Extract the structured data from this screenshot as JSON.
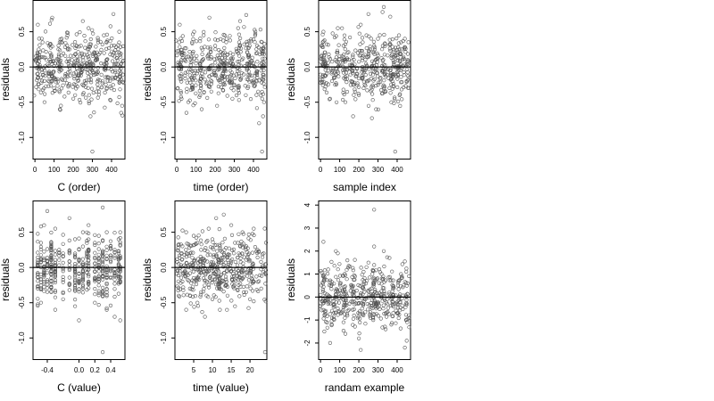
{
  "chart_data": [
    {
      "type": "scatter",
      "xlabel": "C (order)",
      "ylabel": "residuals",
      "xlim": [
        -10,
        470
      ],
      "ylim": [
        -1.3,
        0.95
      ],
      "xticks": [
        0,
        100,
        200,
        300,
        400
      ],
      "yticks": [
        -1.0,
        -0.5,
        0.0,
        0.5
      ],
      "ytick_labels": [
        "-1.0",
        "-0.5",
        "0.0",
        "0.5"
      ],
      "hline": 0,
      "n_points": 480,
      "series": [
        {
          "x": [
            5,
            20,
            40,
            60,
            80,
            100,
            120,
            140,
            160,
            180,
            200,
            220,
            240,
            260,
            280,
            300,
            320,
            340,
            360,
            380,
            400,
            420,
            440,
            455,
            15,
            50,
            90,
            130,
            170,
            210,
            250,
            290,
            330,
            370,
            410,
            450,
            25,
            75,
            125,
            175,
            225,
            275,
            325,
            375,
            425,
            300
          ],
          "y": [
            0.1,
            -0.25,
            0.35,
            0.1,
            0.2,
            -0.3,
            0.05,
            0.4,
            -0.1,
            0.25,
            -0.45,
            0.15,
            0.3,
            -0.2,
            0.55,
            0.05,
            -0.35,
            0.2,
            0.45,
            -0.15,
            0.3,
            -0.05,
            0.5,
            -0.55,
            0.6,
            -0.5,
            0.7,
            -0.6,
            0.45,
            -0.4,
            0.65,
            -0.7,
            0.35,
            -0.25,
            0.75,
            -0.65,
            0.0,
            -0.1,
            0.15,
            0.05,
            -0.2,
            0.25,
            0.1,
            -0.3,
            0.2,
            -1.2
          ]
        }
      ]
    },
    {
      "type": "scatter",
      "xlabel": "time (order)",
      "ylabel": "residuals",
      "xlim": [
        -10,
        470
      ],
      "ylim": [
        -1.3,
        0.95
      ],
      "xticks": [
        0,
        100,
        200,
        300,
        400
      ],
      "yticks": [
        -1.0,
        -0.5,
        0.0,
        0.5
      ],
      "ytick_labels": [
        "-1.0",
        "-0.5",
        "0.0",
        "0.5"
      ],
      "hline": 0,
      "n_points": 480,
      "series": [
        {
          "x": [
            5,
            20,
            40,
            60,
            80,
            100,
            120,
            140,
            160,
            180,
            200,
            220,
            240,
            260,
            280,
            300,
            320,
            340,
            360,
            380,
            400,
            420,
            440,
            455,
            15,
            50,
            90,
            130,
            170,
            210,
            250,
            290,
            330,
            370,
            410,
            450,
            25,
            75,
            125,
            175,
            225,
            275,
            325,
            375,
            425,
            445
          ],
          "y": [
            -0.3,
            0.2,
            0.1,
            -0.5,
            0.35,
            0.05,
            -0.2,
            0.45,
            0.15,
            -0.35,
            0.3,
            0.0,
            -0.1,
            0.4,
            0.2,
            -0.25,
            0.55,
            0.1,
            -0.4,
            0.3,
            0.05,
            -0.15,
            0.25,
            -0.5,
            0.6,
            -0.65,
            0.5,
            -0.6,
            0.7,
            -0.55,
            0.45,
            -0.45,
            0.65,
            -0.3,
            0.5,
            -0.7,
            0.0,
            0.15,
            -0.05,
            0.25,
            0.1,
            -0.2,
            0.35,
            0.05,
            -0.35,
            -1.2
          ]
        }
      ]
    },
    {
      "type": "scatter",
      "xlabel": "sample index",
      "ylabel": "residuals",
      "xlim": [
        -10,
        470
      ],
      "ylim": [
        -1.3,
        0.95
      ],
      "xticks": [
        0,
        100,
        200,
        300,
        400
      ],
      "yticks": [
        -1.0,
        -0.5,
        0.0,
        0.5
      ],
      "ytick_labels": [
        "-1.0",
        "-0.5",
        "0.0",
        "0.5"
      ],
      "hline": 0,
      "n_points": 480,
      "series": [
        {
          "x": [
            5,
            20,
            40,
            60,
            80,
            100,
            120,
            140,
            160,
            180,
            200,
            220,
            240,
            260,
            280,
            300,
            320,
            340,
            360,
            380,
            400,
            420,
            440,
            455,
            15,
            50,
            90,
            130,
            170,
            210,
            250,
            290,
            330,
            370,
            410,
            450,
            25,
            75,
            125,
            175,
            225,
            275,
            325,
            375,
            425,
            390
          ],
          "y": [
            0.3,
            0.05,
            -0.05,
            -0.2,
            -0.1,
            0.15,
            0.3,
            0.2,
            -0.2,
            -0.35,
            -0.4,
            0.35,
            0.45,
            0.25,
            0.3,
            0.4,
            -0.05,
            -0.35,
            -0.3,
            -0.1,
            0.2,
            0.35,
            0.4,
            0.1,
            0.5,
            -0.45,
            0.55,
            -0.5,
            -0.7,
            0.6,
            0.75,
            -0.6,
            0.85,
            -0.5,
            0.45,
            -0.2,
            0.0,
            -0.15,
            0.1,
            -0.25,
            -0.3,
            0.2,
            0.3,
            -0.2,
            0.25,
            -1.2
          ]
        }
      ]
    },
    {
      "type": "scatter",
      "xlabel": "C (value)",
      "ylabel": "residuals",
      "xlim": [
        -0.58,
        0.58
      ],
      "ylim": [
        -1.3,
        0.95
      ],
      "xticks": [
        -0.4,
        0.0,
        0.2,
        0.4
      ],
      "xtick_labels": [
        "-0.4",
        "0.0",
        "0.2",
        "0.4"
      ],
      "yticks": [
        -1.0,
        -0.5,
        0.0,
        0.5
      ],
      "ytick_labels": [
        "-1.0",
        "-0.5",
        "0.0",
        "0.5"
      ],
      "hline": 0,
      "n_points": 480,
      "series": [
        {
          "x": [
            -0.52,
            -0.52,
            -0.48,
            -0.48,
            -0.44,
            -0.44,
            -0.4,
            -0.4,
            -0.35,
            -0.35,
            -0.35,
            -0.3,
            -0.3,
            -0.2,
            -0.2,
            -0.12,
            -0.12,
            -0.05,
            -0.05,
            0.0,
            0.0,
            0.05,
            0.05,
            0.12,
            0.12,
            0.2,
            0.2,
            0.25,
            0.25,
            0.3,
            0.3,
            0.3,
            0.35,
            0.35,
            0.4,
            0.4,
            0.45,
            0.45,
            0.5,
            0.5,
            0.52,
            0.52,
            0.3,
            -0.35,
            0.1,
            -0.25
          ],
          "y": [
            0.1,
            -0.3,
            0.35,
            -0.5,
            0.6,
            -0.2,
            0.8,
            0.05,
            0.3,
            -0.35,
            0.0,
            0.55,
            -0.6,
            0.2,
            -0.45,
            0.7,
            -0.25,
            0.4,
            -0.55,
            0.1,
            -0.75,
            0.5,
            -0.3,
            0.6,
            -0.1,
            0.35,
            -0.5,
            0.45,
            -0.2,
            0.85,
            0.2,
            -0.4,
            0.5,
            -0.6,
            0.3,
            -0.15,
            0.25,
            -0.7,
            0.4,
            0.05,
            0.5,
            -0.75,
            -1.2,
            -0.15,
            0.15,
            0.25
          ]
        }
      ]
    },
    {
      "type": "scatter",
      "xlabel": "time (value)",
      "ylabel": "residuals",
      "xlim": [
        0,
        24.5
      ],
      "ylim": [
        -1.3,
        0.95
      ],
      "xticks": [
        5,
        10,
        15,
        20
      ],
      "yticks": [
        -1.0,
        -0.5,
        0.0,
        0.5
      ],
      "ytick_labels": [
        "-1.0",
        "-0.5",
        "0.0",
        "0.5"
      ],
      "hline": 0,
      "n_points": 480,
      "series": [
        {
          "x": [
            1,
            1,
            2,
            2,
            3,
            3,
            4,
            4,
            5,
            5,
            6,
            6,
            7,
            7,
            8,
            8,
            9,
            9,
            10,
            10,
            11,
            11,
            12,
            12,
            12,
            13,
            13,
            14,
            14,
            15,
            15,
            16,
            16,
            17,
            17,
            18,
            18,
            19,
            19,
            20,
            20,
            21,
            21,
            22,
            23,
            24
          ],
          "y": [
            0.05,
            -0.4,
            0.3,
            -0.2,
            0.5,
            -0.6,
            0.2,
            -0.3,
            0.45,
            -0.15,
            0.35,
            -0.5,
            0.25,
            -0.35,
            0.1,
            -0.7,
            0.55,
            -0.25,
            0.4,
            -0.45,
            0.7,
            -0.1,
            0.3,
            -0.3,
            -0.6,
            0.75,
            -0.2,
            0.15,
            -0.4,
            0.6,
            -0.05,
            0.35,
            -0.55,
            0.2,
            -0.25,
            0.5,
            -0.15,
            0.3,
            -0.35,
            0.1,
            -0.45,
            0.55,
            -0.2,
            0.25,
            -0.3,
            -1.2
          ]
        }
      ]
    },
    {
      "type": "scatter",
      "xlabel": "randam example",
      "ylabel": "residuals",
      "xlim": [
        -10,
        470
      ],
      "ylim": [
        -2.7,
        4.2
      ],
      "xticks": [
        0,
        100,
        200,
        300,
        400
      ],
      "yticks": [
        -2,
        -1,
        0,
        1,
        2,
        3,
        4
      ],
      "hline": 0,
      "n_points": 480,
      "series": [
        {
          "x": [
            5,
            20,
            40,
            60,
            80,
            100,
            120,
            140,
            160,
            180,
            200,
            220,
            240,
            260,
            280,
            300,
            320,
            340,
            360,
            380,
            400,
            420,
            440,
            455,
            15,
            50,
            90,
            130,
            170,
            210,
            250,
            290,
            330,
            370,
            410,
            450,
            25,
            75,
            125,
            175,
            225,
            275,
            325,
            375,
            425,
            280
          ],
          "y": [
            0.5,
            -1.5,
            1.2,
            -0.6,
            2.0,
            0.3,
            -1.1,
            1.6,
            -0.2,
            0.9,
            -1.8,
            0.4,
            1.3,
            -0.9,
            2.2,
            -0.3,
            0.8,
            -1.4,
            1.7,
            0.1,
            -0.7,
            1.0,
            -2.2,
            0.6,
            2.4,
            -2.0,
            1.9,
            -1.6,
            0.2,
            -2.3,
            1.5,
            -0.5,
            2.0,
            -1.2,
            0.7,
            -1.9,
            0.0,
            -0.4,
            0.3,
            -0.8,
            1.1,
            -1.0,
            0.4,
            -0.2,
            0.9,
            3.8
          ]
        }
      ]
    }
  ]
}
